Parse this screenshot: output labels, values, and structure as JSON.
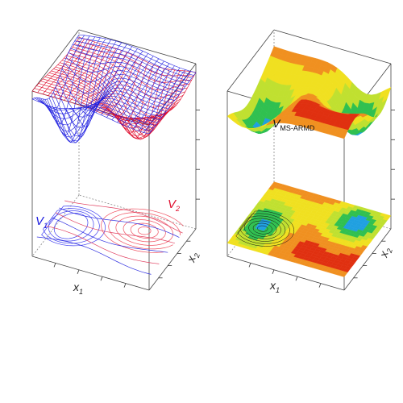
{
  "chart_data": [
    {
      "type": "surface",
      "panel": "left",
      "style": "wireframe with projected contour lines",
      "xlabel": "x",
      "xlabel_sub": "1",
      "ylabel": "x",
      "ylabel_sub": "2",
      "series": [
        {
          "name": "V",
          "name_sub": "1",
          "color": "#2020e0"
        },
        {
          "name": "V",
          "name_sub": "2",
          "color": "#e01030"
        }
      ]
    },
    {
      "type": "surface",
      "panel": "right",
      "style": "filled colormap surface with projected filled contours",
      "colormap": [
        "#1040c0",
        "#20a0e0",
        "#30c050",
        "#c0e030",
        "#f0e020",
        "#f09020",
        "#e03010"
      ],
      "title": "V",
      "title_sub": "MS-ARMD",
      "xlabel": "x",
      "xlabel_sub": "1",
      "ylabel": "x",
      "ylabel_sub": "2"
    }
  ]
}
